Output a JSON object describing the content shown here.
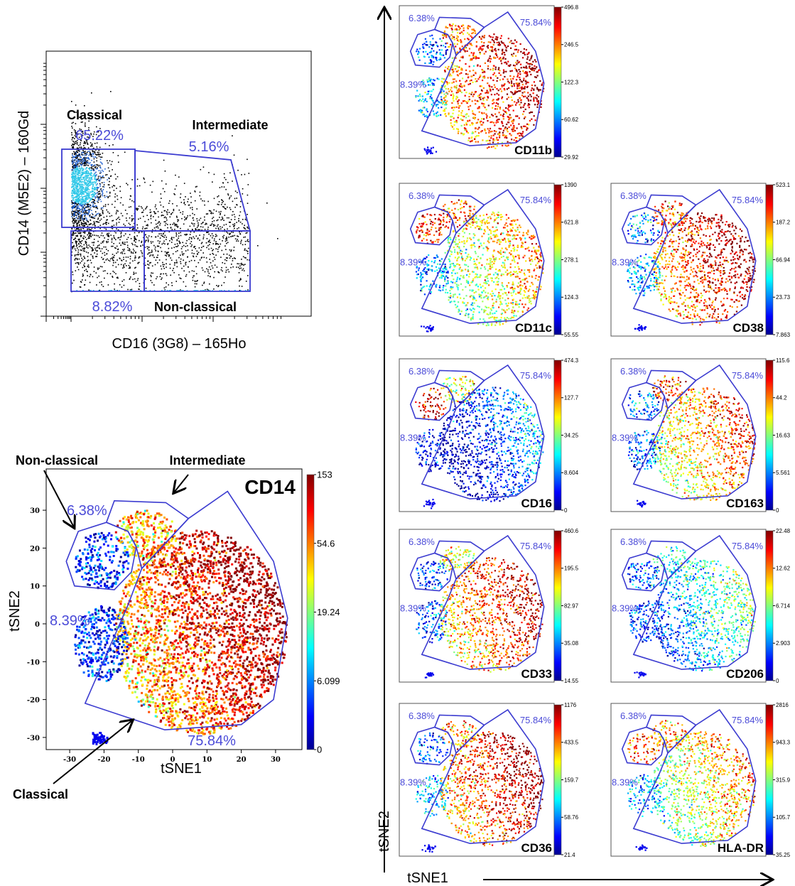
{
  "gating_plot": {
    "x_label": "CD16 (3G8) – 165Ho",
    "y_label": "CD14 (M5E2) – 160Gd",
    "gates": [
      {
        "name": "Classical",
        "percent": "65.22%"
      },
      {
        "name": "Intermediate",
        "percent": "5.16%"
      },
      {
        "name": "Non-classical",
        "percent": "8.82%"
      }
    ]
  },
  "tsne_main": {
    "marker": "CD14",
    "x_label": "tSNE1",
    "y_label": "tSNE2",
    "xticks": [
      -30,
      -20,
      -10,
      0,
      10,
      20,
      30
    ],
    "yticks": [
      30,
      20,
      10,
      0,
      -10,
      -20,
      -30
    ],
    "colorbar_ticks": [
      153,
      54.6,
      19.24,
      6.099,
      0
    ],
    "gate_percents": [
      "6.38%",
      "8.39%",
      "75.84%"
    ],
    "annotations": [
      "Non-classical",
      "Intermediate",
      "Classical"
    ]
  },
  "tsne_panels": {
    "x_label": "tSNE1",
    "y_label": "tSNE2",
    "gate_percents": [
      "6.38%",
      "8.39%",
      "75.84%"
    ],
    "panels": [
      {
        "marker": "CD11b",
        "colorbar_ticks": [
          496.8,
          246.5,
          122.3,
          60.62,
          29.92
        ]
      },
      {
        "marker": "CD11c",
        "colorbar_ticks": [
          1390,
          621.8,
          278.1,
          124.3,
          55.55
        ]
      },
      {
        "marker": "CD38",
        "colorbar_ticks": [
          523.1,
          187.2,
          66.94,
          23.73,
          7.863
        ]
      },
      {
        "marker": "CD16",
        "colorbar_ticks": [
          474.3,
          127.7,
          34.25,
          8.604,
          0
        ]
      },
      {
        "marker": "CD163",
        "colorbar_ticks": [
          115.6,
          44.2,
          16.63,
          5.561,
          0
        ]
      },
      {
        "marker": "CD33",
        "colorbar_ticks": [
          460.6,
          195.5,
          82.97,
          35.08,
          14.55
        ]
      },
      {
        "marker": "CD206",
        "colorbar_ticks": [
          22.48,
          12.62,
          6.714,
          2.903,
          0
        ]
      },
      {
        "marker": "CD36",
        "colorbar_ticks": [
          1176,
          433.5,
          159.7,
          58.76,
          21.4
        ]
      },
      {
        "marker": "HLA-DR",
        "colorbar_ticks": [
          2816,
          943.3,
          315.9,
          105.7,
          35.25
        ]
      }
    ]
  }
}
